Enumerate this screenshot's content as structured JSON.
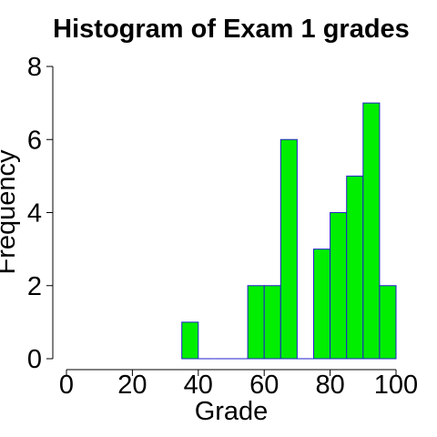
{
  "chart_data": {
    "type": "bar",
    "title": "Histogram of Exam 1 grades",
    "xlabel": "Grade",
    "ylabel": "Frequency",
    "bins": [
      [
        35,
        40
      ],
      [
        40,
        45
      ],
      [
        45,
        50
      ],
      [
        50,
        55
      ],
      [
        55,
        60
      ],
      [
        60,
        65
      ],
      [
        65,
        70
      ],
      [
        70,
        75
      ],
      [
        75,
        80
      ],
      [
        80,
        85
      ],
      [
        85,
        90
      ],
      [
        90,
        95
      ],
      [
        95,
        100
      ]
    ],
    "values": [
      1,
      0,
      0,
      0,
      2,
      2,
      6,
      0,
      3,
      4,
      5,
      7,
      2
    ],
    "xlim": [
      0,
      100
    ],
    "ylim": [
      0,
      8
    ],
    "xticks": [
      0,
      20,
      40,
      60,
      80,
      100
    ],
    "xtick_labels": [
      "0",
      "20",
      "40",
      "60",
      "80",
      "100"
    ],
    "yticks": [
      0,
      2,
      4,
      6,
      8
    ],
    "ytick_labels": [
      "0",
      "2",
      "4",
      "6",
      "8"
    ],
    "grid": false,
    "bar_fill": "#00ee00",
    "bar_stroke": "#2222cc"
  }
}
